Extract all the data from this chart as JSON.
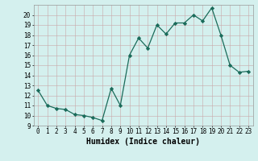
{
  "x": [
    0,
    1,
    2,
    3,
    4,
    5,
    6,
    7,
    8,
    9,
    10,
    11,
    12,
    13,
    14,
    15,
    16,
    17,
    18,
    19,
    20,
    21,
    22,
    23
  ],
  "y": [
    12.5,
    11.0,
    10.7,
    10.6,
    10.1,
    10.0,
    9.8,
    9.5,
    12.7,
    11.0,
    16.0,
    17.7,
    16.7,
    19.0,
    18.1,
    19.2,
    19.2,
    20.0,
    19.4,
    20.7,
    18.0,
    15.0,
    14.3,
    14.4
  ],
  "xlabel": "Humidex (Indice chaleur)",
  "ylim": [
    9,
    21
  ],
  "xlim": [
    -0.5,
    23.5
  ],
  "yticks": [
    9,
    10,
    11,
    12,
    13,
    14,
    15,
    16,
    17,
    18,
    19,
    20
  ],
  "xticks": [
    0,
    1,
    2,
    3,
    4,
    5,
    6,
    7,
    8,
    9,
    10,
    11,
    12,
    13,
    14,
    15,
    16,
    17,
    18,
    19,
    20,
    21,
    22,
    23
  ],
  "line_color": "#1a6b5a",
  "marker_color": "#1a6b5a",
  "bg_color": "#d4f0ee",
  "grid_major_color": "#c8e8e4",
  "grid_minor_color": "#daf2f0",
  "xlabel_fontsize": 7,
  "tick_fontsize": 5.5
}
